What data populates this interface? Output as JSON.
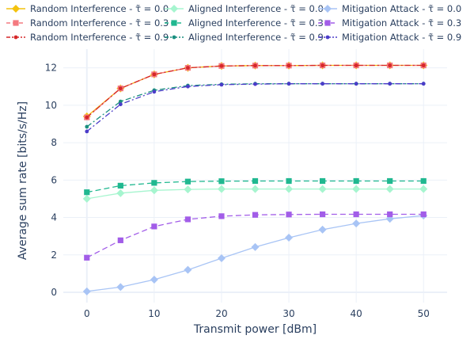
{
  "chart_data": {
    "type": "line",
    "title": "",
    "xlabel": "Transmit power [dBm]",
    "ylabel": "Average sum rate [bits/s/Hz]",
    "xlim": [
      -3.5,
      53.5
    ],
    "ylim": [
      -0.55,
      13.0
    ],
    "x_ticks": [
      0,
      10,
      20,
      30,
      40,
      50
    ],
    "y_ticks": [
      0,
      2,
      4,
      6,
      8,
      10,
      12
    ],
    "grid": true,
    "legend_placement": "top",
    "x": [
      0,
      5,
      10,
      15,
      20,
      25,
      30,
      35,
      40,
      45,
      50
    ],
    "series": [
      {
        "name": "Random Interference - τ̃ = 0.0",
        "color": "#f4c20d",
        "dash": "solid",
        "marker": "diamond",
        "values": [
          9.4,
          10.9,
          11.65,
          12.0,
          12.1,
          12.12,
          12.12,
          12.13,
          12.13,
          12.13,
          12.13
        ]
      },
      {
        "name": "Random Interference - τ̃ = 0.3",
        "color": "#f47a80",
        "dash": "dash",
        "marker": "square",
        "values": [
          9.35,
          10.9,
          11.65,
          12.0,
          12.1,
          12.12,
          12.12,
          12.13,
          12.13,
          12.13,
          12.13
        ]
      },
      {
        "name": "Random Interference - τ̃ = 0.9",
        "color": "#d62728",
        "dash": "dashdot",
        "marker": "circle",
        "values": [
          9.35,
          10.9,
          11.65,
          12.0,
          12.1,
          12.12,
          12.12,
          12.13,
          12.13,
          12.13,
          12.13
        ]
      },
      {
        "name": "Aligned Interference - τ̃ = 0.0",
        "color": "#a6f5cf",
        "dash": "solid",
        "marker": "diamond",
        "values": [
          5.0,
          5.3,
          5.45,
          5.5,
          5.52,
          5.52,
          5.52,
          5.52,
          5.52,
          5.52,
          5.52
        ]
      },
      {
        "name": "Aligned Interference - τ̃ = 0.3",
        "color": "#20b890",
        "dash": "dash",
        "marker": "square",
        "values": [
          5.35,
          5.7,
          5.85,
          5.92,
          5.94,
          5.95,
          5.95,
          5.95,
          5.95,
          5.95,
          5.95
        ]
      },
      {
        "name": "Aligned Interference - τ̃ = 0.9",
        "color": "#1a8f7f",
        "dash": "dashdot",
        "marker": "circle",
        "values": [
          8.85,
          10.2,
          10.8,
          11.05,
          11.12,
          11.15,
          11.15,
          11.15,
          11.15,
          11.15,
          11.15
        ]
      },
      {
        "name": "Mitigation Attack - τ̃ = 0.0",
        "color": "#a8c4f5",
        "dash": "solid",
        "marker": "diamond",
        "values": [
          0.05,
          0.28,
          0.68,
          1.2,
          1.82,
          2.42,
          2.92,
          3.35,
          3.68,
          3.93,
          4.1
        ]
      },
      {
        "name": "Mitigation Attack - τ̃ = 0.3",
        "color": "#a25de8",
        "dash": "dash",
        "marker": "square",
        "values": [
          1.85,
          2.78,
          3.52,
          3.9,
          4.07,
          4.14,
          4.16,
          4.17,
          4.17,
          4.17,
          4.17
        ]
      },
      {
        "name": "Mitigation Attack - τ̃ = 0.9",
        "color": "#4b3cc9",
        "dash": "dashdot",
        "marker": "circle",
        "values": [
          8.6,
          10.05,
          10.72,
          11.0,
          11.1,
          11.13,
          11.15,
          11.15,
          11.15,
          11.15,
          11.15
        ]
      }
    ]
  }
}
